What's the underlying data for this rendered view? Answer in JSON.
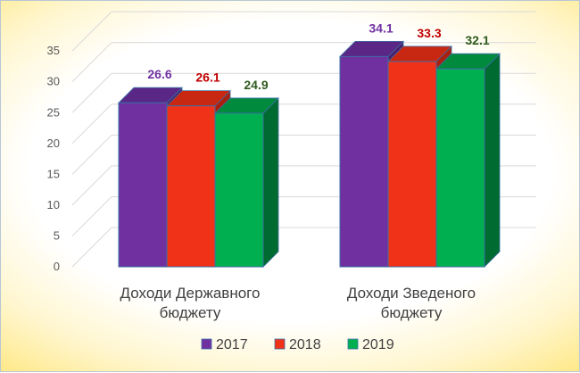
{
  "chart_data": {
    "type": "bar",
    "categories": [
      "Доходи Державного бюджету",
      "Доходи Зведеного бюджету"
    ],
    "category_lines": [
      [
        "Доходи Державного",
        "бюджету"
      ],
      [
        "Доходи Зведеного",
        "бюджету"
      ]
    ],
    "series": [
      {
        "name": "2017",
        "values": [
          26.6,
          34.1
        ],
        "labels": [
          "26.6",
          "34.1"
        ],
        "color": "#7030a0",
        "side_color": "#4b1f6e",
        "top_color": "#5a2787",
        "label_color": "#7030a0"
      },
      {
        "name": "2018",
        "values": [
          26.1,
          33.3
        ],
        "labels": [
          "26.1",
          "33.3"
        ],
        "color": "#f03218",
        "side_color": "#a8200e",
        "top_color": "#c82812",
        "label_color": "#c00000"
      },
      {
        "name": "2019",
        "values": [
          24.9,
          32.1
        ],
        "labels": [
          "24.9",
          "32.1"
        ],
        "color": "#00b050",
        "side_color": "#006b30",
        "top_color": "#008a3e",
        "label_color": "#2e5a1e"
      }
    ],
    "y_ticks": [
      "0",
      "5",
      "10",
      "15",
      "20",
      "25",
      "30",
      "35"
    ],
    "ylim": [
      0,
      35
    ],
    "grid": true,
    "legend": "bottom",
    "title": "",
    "xlabel": "",
    "ylabel": ""
  }
}
